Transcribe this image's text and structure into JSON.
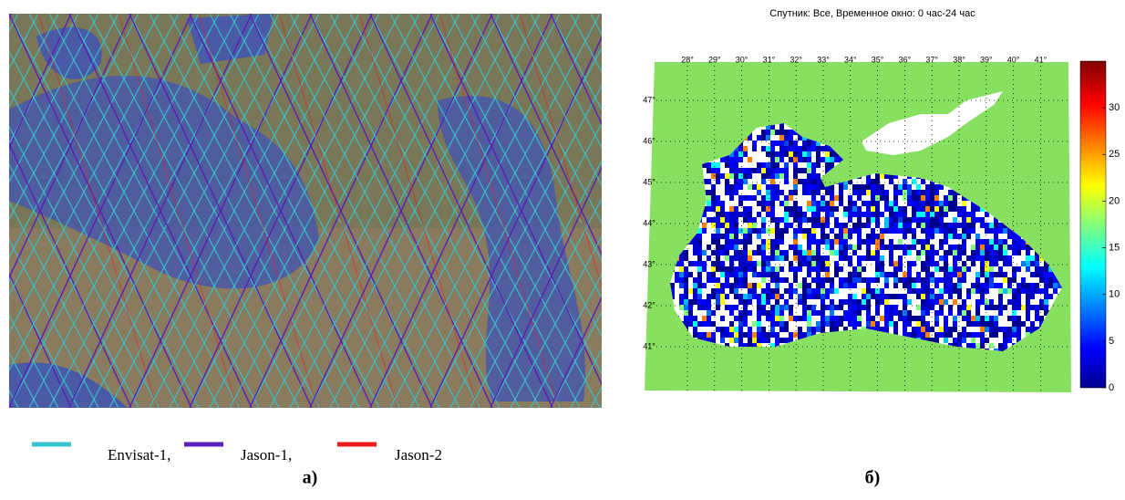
{
  "panel_a": {
    "legend": [
      {
        "label": "Envisat-1,",
        "color": "#33c6cc"
      },
      {
        "label": "Jason-1,",
        "color": "#5a1fb8"
      },
      {
        "label": "Jason-2",
        "color": "#ee1b1b"
      }
    ],
    "caption": "а)"
  },
  "panel_b": {
    "title": "Спутник: Все, Временное окно: 0 час-24 час",
    "lon_labels": [
      "28°",
      "29°",
      "30°",
      "31°",
      "32°",
      "33°",
      "34°",
      "35°",
      "36°",
      "37°",
      "38°",
      "39°",
      "40°",
      "41°"
    ],
    "lat_labels": [
      "47°",
      "46°",
      "45°",
      "44°",
      "43°",
      "42°",
      "41°"
    ],
    "colorbar": {
      "range": [
        0,
        35
      ],
      "ticks": [
        0,
        5,
        10,
        15,
        20,
        25,
        30
      ]
    },
    "caption": "б)"
  }
}
